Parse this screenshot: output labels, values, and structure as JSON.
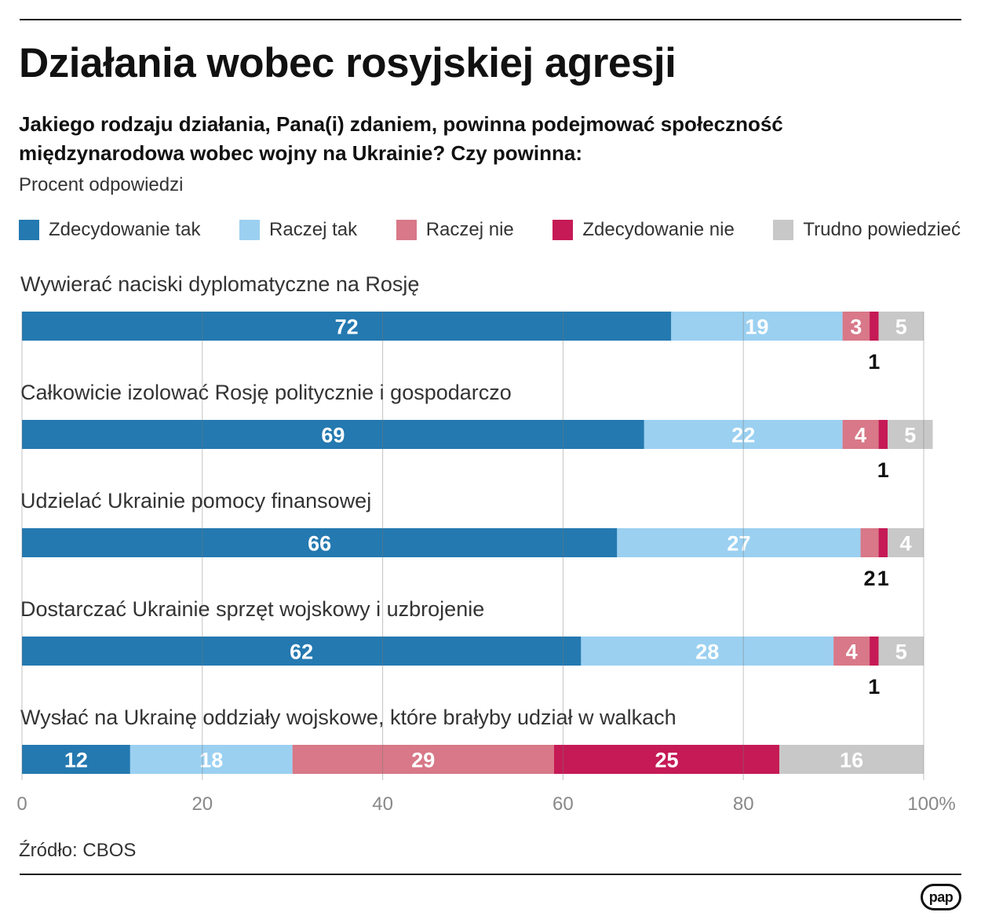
{
  "header": {
    "title": "Działania wobec rosyjskiej agresji",
    "subtitle": "Jakiego rodzaju działania, Pana(i) zdaniem, powinna podejmować społeczność międzynarodowa wobec wojny na Ukrainie? Czy powinna:",
    "unit_note": "Procent odpowiedzi"
  },
  "footer": {
    "source": "Źródło: CBOS",
    "logo": "pap"
  },
  "colors": {
    "zdecydowanie_tak": "#2479b0",
    "raczej_tak": "#9bd0f1",
    "raczej_nie": "#d87888",
    "zdecydowanie_nie": "#c51a55",
    "trudno": "#c8c8c8"
  },
  "chart_data": {
    "type": "bar",
    "orientation": "horizontal",
    "stacked": true,
    "title": "Działania wobec rosyjskiej agresji",
    "xlabel": "",
    "ylabel": "",
    "xlim": [
      0,
      100
    ],
    "x_ticks": [
      {
        "value": 0,
        "label": "0"
      },
      {
        "value": 20,
        "label": "20"
      },
      {
        "value": 40,
        "label": "40"
      },
      {
        "value": 60,
        "label": "60"
      },
      {
        "value": 80,
        "label": "80"
      },
      {
        "value": 100,
        "label": "100%"
      }
    ],
    "grid": true,
    "legend_position": "top",
    "series": [
      {
        "name": "Zdecydowanie tak",
        "color": "#2479b0",
        "label_color": "#ffffff"
      },
      {
        "name": "Raczej tak",
        "color": "#9bd0f1",
        "label_color": "#ffffff"
      },
      {
        "name": "Raczej nie",
        "color": "#d87888",
        "label_color": "#ffffff"
      },
      {
        "name": "Zdecydowanie nie",
        "color": "#c51a55",
        "label_color": "#ffffff"
      },
      {
        "name": "Trudno powiedzieć",
        "color": "#c8c8c8",
        "label_color": "#ffffff"
      }
    ],
    "categories": [
      {
        "label": "Wywierać naciski dyplomatyczne na Rosję",
        "values": [
          72,
          19,
          3,
          1,
          5
        ]
      },
      {
        "label": "Całkowicie izolować Rosję politycznie i gospodarczo",
        "values": [
          69,
          22,
          4,
          1,
          5
        ]
      },
      {
        "label": "Udzielać Ukrainie pomocy finansowej",
        "values": [
          66,
          27,
          2,
          1,
          4
        ]
      },
      {
        "label": "Dostarczać Ukrainie sprzęt wojskowy i uzbrojenie",
        "values": [
          62,
          28,
          4,
          1,
          5
        ]
      },
      {
        "label": "Wysłać na Ukrainę oddziały wojskowe, które brałyby udział w walkach",
        "values": [
          12,
          18,
          29,
          25,
          16
        ]
      }
    ]
  }
}
